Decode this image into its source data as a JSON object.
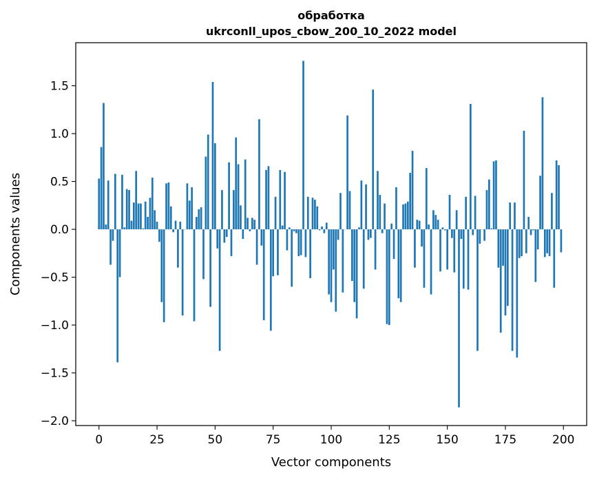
{
  "chart_data": {
    "type": "bar",
    "title": "обработка",
    "subtitle": "ukrconll_upos_cbow_200_10_2022 model",
    "xlabel": "Vector components",
    "ylabel": "Components values",
    "xlim": [
      -10,
      210
    ],
    "ylim": [
      -2.05,
      1.95
    ],
    "xticks": [
      0,
      25,
      50,
      75,
      100,
      125,
      150,
      175,
      200
    ],
    "xtick_labels": [
      "0",
      "25",
      "50",
      "75",
      "100",
      "125",
      "150",
      "175",
      "200"
    ],
    "yticks": [
      1.5,
      1.0,
      0.5,
      0.0,
      -0.5,
      -1.0,
      -1.5,
      -2.0
    ],
    "ytick_labels": [
      "1.5",
      "1.0",
      "0.5",
      "0.0",
      "−0.5",
      "−1.0",
      "−1.5",
      "−2.0"
    ],
    "grid": false,
    "bar_color": "#1f77b4",
    "x": [
      0,
      1,
      2,
      3,
      4,
      5,
      6,
      7,
      8,
      9,
      10,
      11,
      12,
      13,
      14,
      15,
      16,
      17,
      18,
      19,
      20,
      21,
      22,
      23,
      24,
      25,
      26,
      27,
      28,
      29,
      30,
      31,
      32,
      33,
      34,
      35,
      36,
      37,
      38,
      39,
      40,
      41,
      42,
      43,
      44,
      45,
      46,
      47,
      48,
      49,
      50,
      51,
      52,
      53,
      54,
      55,
      56,
      57,
      58,
      59,
      60,
      61,
      62,
      63,
      64,
      65,
      66,
      67,
      68,
      69,
      70,
      71,
      72,
      73,
      74,
      75,
      76,
      77,
      78,
      79,
      80,
      81,
      82,
      83,
      84,
      85,
      86,
      87,
      88,
      89,
      90,
      91,
      92,
      93,
      94,
      95,
      96,
      97,
      98,
      99,
      100,
      101,
      102,
      103,
      104,
      105,
      106,
      107,
      108,
      109,
      110,
      111,
      112,
      113,
      114,
      115,
      116,
      117,
      118,
      119,
      120,
      121,
      122,
      123,
      124,
      125,
      126,
      127,
      128,
      129,
      130,
      131,
      132,
      133,
      134,
      135,
      136,
      137,
      138,
      139,
      140,
      141,
      142,
      143,
      144,
      145,
      146,
      147,
      148,
      149,
      150,
      151,
      152,
      153,
      154,
      155,
      156,
      157,
      158,
      159,
      160,
      161,
      162,
      163,
      164,
      165,
      166,
      167,
      168,
      169,
      170,
      171,
      172,
      173,
      174,
      175,
      176,
      177,
      178,
      179,
      180,
      181,
      182,
      183,
      184,
      185,
      186,
      187,
      188,
      189,
      190,
      191,
      192,
      193,
      194,
      195,
      196,
      197,
      198,
      199
    ],
    "values": [
      0.53,
      0.86,
      1.32,
      0.05,
      0.51,
      -0.37,
      -0.12,
      0.58,
      -1.39,
      -0.5,
      0.57,
      0.02,
      0.42,
      0.41,
      0.09,
      0.28,
      0.61,
      0.27,
      0.27,
      0.01,
      0.29,
      0.13,
      0.33,
      0.54,
      0.2,
      0.08,
      -0.13,
      -0.76,
      -0.97,
      0.48,
      0.49,
      0.24,
      -0.03,
      0.09,
      -0.4,
      0.08,
      -0.9,
      0.0,
      0.48,
      0.3,
      0.44,
      -0.96,
      0.13,
      0.21,
      0.23,
      -0.52,
      0.76,
      0.99,
      -0.81,
      1.54,
      0.9,
      -0.2,
      -1.27,
      0.41,
      -0.14,
      -0.08,
      0.7,
      -0.28,
      0.41,
      0.96,
      0.68,
      0.25,
      -0.1,
      0.73,
      0.12,
      -0.02,
      0.12,
      0.1,
      -0.37,
      1.15,
      -0.17,
      -0.95,
      0.62,
      0.66,
      -1.06,
      -0.49,
      0.34,
      -0.48,
      0.62,
      0.04,
      0.6,
      -0.22,
      0.02,
      -0.6,
      -0.02,
      -0.04,
      -0.28,
      -0.27,
      1.76,
      -0.29,
      0.34,
      -0.51,
      0.33,
      0.31,
      0.24,
      -0.01,
      0.03,
      -0.04,
      0.07,
      -0.68,
      -0.76,
      -0.42,
      -0.86,
      -0.11,
      0.38,
      -0.66,
      0.0,
      1.19,
      0.4,
      -0.54,
      -0.76,
      -0.93,
      0.02,
      0.51,
      -0.62,
      0.47,
      -0.11,
      -0.09,
      1.46,
      -0.42,
      0.61,
      0.36,
      -0.04,
      0.27,
      -0.99,
      -1.0,
      0.06,
      -0.31,
      0.44,
      -0.72,
      -0.76,
      0.26,
      0.27,
      0.29,
      0.59,
      0.82,
      -0.4,
      0.1,
      0.09,
      -0.18,
      -0.61,
      0.64,
      0.05,
      -0.68,
      0.2,
      0.15,
      0.1,
      -0.44,
      0.02,
      -0.01,
      -0.42,
      0.36,
      -0.09,
      -0.45,
      0.2,
      -1.86,
      -0.1,
      -0.62,
      0.34,
      -0.63,
      1.31,
      -0.06,
      0.35,
      -1.27,
      -0.15,
      0.0,
      -0.12,
      0.41,
      0.52,
      0.01,
      0.71,
      0.72,
      -0.4,
      -1.08,
      -0.38,
      -0.9,
      -0.8,
      0.28,
      -1.27,
      0.28,
      -1.34,
      -0.3,
      -0.28,
      1.03,
      -0.25,
      0.13,
      -0.06,
      -0.01,
      -0.55,
      -0.21,
      0.56,
      1.38,
      -0.29,
      -0.25,
      -0.28,
      0.38,
      -0.61,
      0.72,
      0.67,
      -0.24
    ]
  }
}
